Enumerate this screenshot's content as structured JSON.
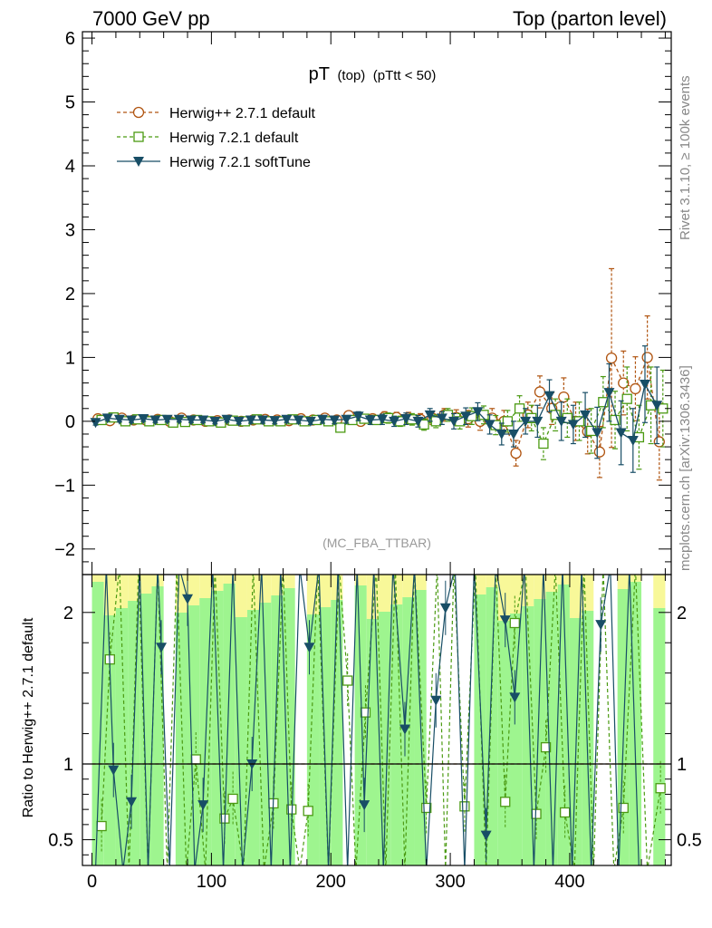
{
  "header": {
    "left": "7000 GeV pp",
    "right": "Top (parton level)"
  },
  "side_labels": {
    "rivet": "Rivet 3.1.10, ≥ 100k events",
    "mcplots": "mcplots.cern.ch [arXiv:1306.3436]"
  },
  "analysis_tag": "(MC_FBA_TTBAR)",
  "colors": {
    "herwigpp": "#b05410",
    "herwig721": "#4b9a12",
    "softtune": "#184e66",
    "band_green": "#9ef58f",
    "band_yellow": "#f8f899"
  },
  "chart_data": [
    {
      "type": "line",
      "panel": "main",
      "title": "pT",
      "title_sub1": "(top)",
      "title_sub2": "(pTtt < 50)",
      "xlim": [
        -8,
        485
      ],
      "ylim": [
        -2.4,
        6.1
      ],
      "x_ticks": [
        0,
        100,
        200,
        300,
        400
      ],
      "y_ticks": [
        -2,
        -1,
        0,
        1,
        2,
        3,
        4,
        5,
        6
      ],
      "legend": [
        "Herwig++ 2.7.1 default",
        "Herwig 7.2.1 default",
        "Herwig 7.2.1 softTune"
      ],
      "legend_position": "top-left",
      "series": [
        {
          "name": "Herwig++ 2.7.1 default",
          "marker": "circle",
          "dashed": true,
          "x": [
            5,
            15,
            25,
            35,
            45,
            55,
            65,
            75,
            85,
            95,
            105,
            115,
            125,
            135,
            145,
            155,
            165,
            175,
            185,
            195,
            205,
            215,
            225,
            235,
            245,
            255,
            265,
            275,
            285,
            295,
            305,
            315,
            325,
            335,
            345,
            355,
            365,
            375,
            385,
            395,
            405,
            415,
            425,
            435,
            445,
            455,
            465,
            475
          ],
          "y": [
            0.04,
            0.01,
            0.05,
            0.02,
            0.02,
            0.03,
            0.0,
            0.05,
            0.02,
            0.0,
            0.01,
            0.02,
            0.0,
            0.02,
            0.03,
            0.02,
            0.01,
            0.04,
            0.02,
            0.05,
            0.02,
            0.09,
            0.0,
            0.04,
            0.07,
            0.06,
            0.05,
            0.03,
            0.05,
            0.1,
            0.06,
            0.04,
            0.0,
            0.05,
            0.0,
            -0.5,
            0.1,
            0.46,
            0.2,
            0.38,
            0.0,
            -0.16,
            -0.48,
            0.99,
            0.6,
            0.51,
            1.0,
            -0.32
          ],
          "err": [
            0.04,
            0.04,
            0.04,
            0.04,
            0.04,
            0.04,
            0.04,
            0.04,
            0.04,
            0.04,
            0.04,
            0.04,
            0.04,
            0.05,
            0.05,
            0.05,
            0.05,
            0.05,
            0.05,
            0.06,
            0.06,
            0.06,
            0.07,
            0.07,
            0.08,
            0.08,
            0.09,
            0.09,
            0.1,
            0.1,
            0.12,
            0.13,
            0.14,
            0.15,
            0.17,
            0.2,
            0.2,
            0.25,
            0.25,
            0.3,
            0.3,
            0.35,
            0.4,
            1.4,
            0.5,
            0.5,
            0.65,
            0.6
          ]
        },
        {
          "name": "Herwig 7.2.1 default",
          "marker": "square",
          "dashed": true,
          "x": [
            8,
            18,
            28,
            38,
            48,
            58,
            68,
            78,
            88,
            98,
            108,
            118,
            128,
            138,
            148,
            158,
            168,
            178,
            188,
            198,
            208,
            218,
            228,
            238,
            248,
            258,
            268,
            278,
            288,
            298,
            308,
            318,
            328,
            338,
            348,
            358,
            368,
            378,
            388,
            398,
            408,
            418,
            428,
            438,
            448,
            458,
            468,
            478
          ],
          "y": [
            0.02,
            0.06,
            0.0,
            0.03,
            0.0,
            0.02,
            -0.02,
            -0.01,
            0.02,
            0.0,
            -0.02,
            0.01,
            0.0,
            0.03,
            0.0,
            0.0,
            0.03,
            0.0,
            0.02,
            0.0,
            -0.1,
            0.02,
            0.04,
            0.02,
            0.05,
            0.0,
            0.03,
            -0.05,
            0.0,
            0.1,
            0.0,
            0.08,
            0.1,
            -0.06,
            0.0,
            0.2,
            0.05,
            -0.35,
            0.1,
            0.05,
            0.0,
            -0.15,
            0.3,
            0.02,
            0.35,
            -0.25,
            0.25,
            0.2
          ],
          "err": [
            0.04,
            0.04,
            0.04,
            0.04,
            0.04,
            0.04,
            0.04,
            0.04,
            0.04,
            0.04,
            0.04,
            0.04,
            0.04,
            0.05,
            0.05,
            0.05,
            0.05,
            0.05,
            0.05,
            0.06,
            0.06,
            0.06,
            0.07,
            0.07,
            0.08,
            0.08,
            0.09,
            0.09,
            0.1,
            0.1,
            0.12,
            0.13,
            0.14,
            0.15,
            0.17,
            0.2,
            0.2,
            0.25,
            0.25,
            0.3,
            0.3,
            0.35,
            0.4,
            0.45,
            0.5,
            0.5,
            0.6,
            0.6
          ]
        },
        {
          "name": "Herwig 7.2.1 softTune",
          "marker": "triangle",
          "dashed": false,
          "x": [
            3,
            13,
            23,
            33,
            43,
            53,
            63,
            73,
            83,
            93,
            103,
            113,
            123,
            133,
            143,
            153,
            163,
            173,
            183,
            193,
            203,
            213,
            223,
            233,
            243,
            253,
            263,
            273,
            283,
            293,
            303,
            313,
            323,
            333,
            343,
            353,
            363,
            373,
            383,
            393,
            403,
            413,
            423,
            433,
            443,
            453,
            463,
            473
          ],
          "y": [
            -0.02,
            0.05,
            0.03,
            0.02,
            0.04,
            0.02,
            0.03,
            0.03,
            0.02,
            0.02,
            0.0,
            0.03,
            0.0,
            0.02,
            0.02,
            0.01,
            0.03,
            0.02,
            0.0,
            0.03,
            0.02,
            0.03,
            0.08,
            0.02,
            0.03,
            0.0,
            0.04,
            0.0,
            0.1,
            0.05,
            0.0,
            0.08,
            0.15,
            -0.05,
            -0.2,
            -0.2,
            0.0,
            0.0,
            0.4,
            0.0,
            -0.05,
            0.1,
            -0.18,
            0.45,
            -0.18,
            -0.3,
            0.58,
            0.25
          ],
          "err": [
            0.04,
            0.04,
            0.04,
            0.04,
            0.04,
            0.04,
            0.04,
            0.04,
            0.04,
            0.04,
            0.04,
            0.04,
            0.04,
            0.05,
            0.05,
            0.05,
            0.05,
            0.05,
            0.05,
            0.06,
            0.06,
            0.06,
            0.07,
            0.07,
            0.08,
            0.08,
            0.09,
            0.09,
            0.1,
            0.1,
            0.12,
            0.13,
            0.14,
            0.15,
            0.17,
            0.2,
            0.2,
            0.25,
            0.25,
            0.3,
            0.3,
            0.35,
            0.4,
            0.45,
            0.5,
            0.5,
            0.6,
            0.6
          ]
        }
      ]
    },
    {
      "type": "line",
      "panel": "ratio",
      "ylabel": "Ratio to Herwig++ 2.7.1 default",
      "xlim": [
        -8,
        485
      ],
      "ylim": [
        0.33,
        2.25
      ],
      "y_ticks": [
        0.5,
        1,
        2
      ],
      "reference_line": 1,
      "band_x": [
        0,
        10,
        20,
        30,
        40,
        50,
        60,
        70,
        80,
        90,
        100,
        110,
        120,
        130,
        140,
        150,
        160,
        170,
        180,
        190,
        200,
        210,
        220,
        230,
        240,
        250,
        260,
        270,
        280,
        290,
        300,
        310,
        320,
        330,
        340,
        350,
        360,
        370,
        380,
        390,
        400,
        410,
        420,
        430,
        440,
        450,
        460,
        470,
        480
      ],
      "band_green_hi": [
        2.25,
        2.25,
        2.25,
        2.25,
        2.25,
        2.25,
        2.25,
        2.25,
        2.25,
        2.25,
        2.25,
        2.25,
        2.25,
        2.25,
        2.25,
        2.25,
        2.25,
        2.25,
        2.25,
        2.25,
        2.25,
        2.25,
        2.25,
        2.25,
        2.25,
        2.25,
        2.25,
        2.25,
        2.25,
        2.25,
        2.25,
        2.25,
        2.25,
        2.25,
        2.25,
        2.25,
        2.25,
        2.25,
        2.25,
        2.25,
        2.25,
        2.25,
        2.25,
        2.25,
        2.25,
        2.25,
        2.25,
        2.25,
        2.25
      ],
      "series": [
        {
          "name": "Herwig 7.2.1 default",
          "marker": "square",
          "dashed": true,
          "x": [
            8,
            15,
            23,
            31,
            39,
            47,
            55,
            63,
            71,
            79,
            87,
            95,
            103,
            111,
            118,
            127,
            135,
            144,
            152,
            160,
            167,
            174,
            181,
            189,
            198,
            207,
            214,
            221,
            229,
            238,
            246,
            254,
            262,
            270,
            280,
            289,
            296,
            303,
            312,
            321,
            330,
            338,
            346,
            354,
            363,
            372,
            380,
            388,
            396,
            404,
            412,
            420,
            428,
            437,
            445,
            455,
            465,
            476
          ],
          "y": [
            0.59,
            1.69,
            2.3,
            0.3,
            2.3,
            0.3,
            2.3,
            0.3,
            2.3,
            0.3,
            1.03,
            0.3,
            2.3,
            0.64,
            0.77,
            0.3,
            2.3,
            0.3,
            0.74,
            2.3,
            0.7,
            0.3,
            0.69,
            2.3,
            0.3,
            2.3,
            1.55,
            0.3,
            1.34,
            2.3,
            0.3,
            2.3,
            0.3,
            2.3,
            0.71,
            2.3,
            0.3,
            2.3,
            0.72,
            2.3,
            0.3,
            2.3,
            0.75,
            1.93,
            2.3,
            0.67,
            1.11,
            2.3,
            0.68,
            0.3,
            2.3,
            0.3,
            2.3,
            0.3,
            0.71,
            2.3,
            0.3,
            0.84
          ]
        },
        {
          "name": "Herwig 7.2.1 softTune",
          "marker": "triangle",
          "dashed": false,
          "x": [
            3,
            12,
            18,
            26,
            33,
            40,
            47,
            55,
            58,
            65,
            73,
            80,
            86,
            93,
            101,
            110,
            118,
            126,
            134,
            142,
            150,
            158,
            166,
            174,
            182,
            190,
            198,
            206,
            214,
            222,
            228,
            236,
            244,
            252,
            262,
            270,
            280,
            288,
            296,
            304,
            312,
            320,
            330,
            338,
            346,
            354,
            362,
            370,
            378,
            386,
            394,
            402,
            410,
            418,
            426,
            434,
            441,
            450,
            458,
            466,
            474
          ],
          "y": [
            0.3,
            2.3,
            0.96,
            0.3,
            0.75,
            2.3,
            0.3,
            2.3,
            1.77,
            0.3,
            2.3,
            2.09,
            0.3,
            0.73,
            2.3,
            0.3,
            2.3,
            0.3,
            1.0,
            2.3,
            0.3,
            2.3,
            0.3,
            2.3,
            1.77,
            2.3,
            0.3,
            2.3,
            0.3,
            2.3,
            0.73,
            2.3,
            0.3,
            2.3,
            1.23,
            2.3,
            0.3,
            1.42,
            2.03,
            2.3,
            0.3,
            2.3,
            0.53,
            2.3,
            1.95,
            1.44,
            2.3,
            0.3,
            2.3,
            0.3,
            2.3,
            0.3,
            2.3,
            0.3,
            1.92,
            2.3,
            0.3,
            2.3,
            0.3,
            0.3,
            0.3
          ]
        },
        {
          "name": "Herwig++ 2.7.1 default",
          "marker": "none",
          "dashed": true,
          "x": [
            0,
            480
          ],
          "y": [
            1,
            1
          ]
        }
      ]
    }
  ]
}
